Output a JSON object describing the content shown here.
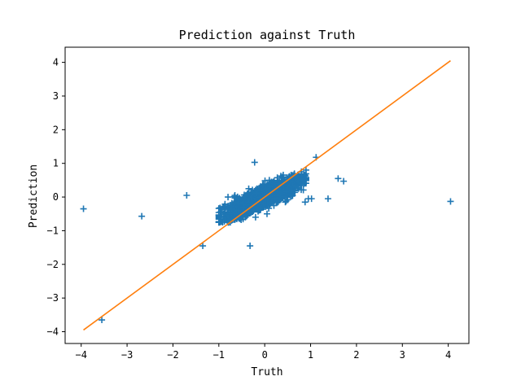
{
  "chart_data": {
    "type": "scatter",
    "title": "Prediction against Truth",
    "xlabel": "Truth",
    "ylabel": "Prediction",
    "xlim": [
      -4.35,
      4.45
    ],
    "ylim": [
      -4.35,
      4.45
    ],
    "xticks": [
      -4,
      -3,
      -2,
      -1,
      0,
      1,
      2,
      3,
      4
    ],
    "yticks": [
      -4,
      -3,
      -2,
      -1,
      0,
      1,
      2,
      3,
      4
    ],
    "tick_labels_x": [
      "−4",
      "−3",
      "−2",
      "−1",
      "0",
      "1",
      "2",
      "3",
      "4"
    ],
    "tick_labels_y": [
      "−4",
      "−3",
      "−2",
      "−1",
      "0",
      "1",
      "2",
      "3",
      "4"
    ],
    "grid": false,
    "colors": {
      "points": "#1f77b4",
      "line": "#ff7f0e"
    },
    "marker": "+",
    "series": [
      {
        "type": "scatter",
        "points": [
          [
            -3.95,
            -0.35
          ],
          [
            -3.55,
            -3.65
          ],
          [
            -2.68,
            -0.57
          ],
          [
            -1.7,
            0.05
          ],
          [
            -1.35,
            -1.45
          ],
          [
            -0.32,
            -1.45
          ],
          [
            -0.22,
            1.03
          ],
          [
            4.05,
            -0.13
          ],
          [
            1.12,
            1.18
          ],
          [
            1.6,
            0.55
          ],
          [
            1.72,
            0.47
          ],
          [
            1.38,
            -0.05
          ],
          [
            1.02,
            -0.05
          ],
          [
            0.95,
            -0.05
          ],
          [
            0.88,
            -0.15
          ],
          [
            -1.0,
            -0.73
          ],
          [
            -0.85,
            -0.68
          ],
          [
            -0.95,
            -0.45
          ],
          [
            -0.65,
            0.05
          ],
          [
            -0.3,
            0.0
          ],
          [
            -0.45,
            -0.3
          ],
          [
            -0.55,
            -0.2
          ],
          [
            0.1,
            0.5
          ],
          [
            0.3,
            0.4
          ],
          [
            0.5,
            0.5
          ],
          [
            0.7,
            0.6
          ],
          [
            0.8,
            0.75
          ],
          [
            -0.8,
            0.0
          ],
          [
            -0.2,
            -0.6
          ],
          [
            0.05,
            -0.5
          ],
          [
            0.6,
            0.2
          ],
          [
            0.45,
            -0.15
          ]
        ],
        "cluster": {
          "center": [
            -0.05,
            -0.02
          ],
          "count": 1500,
          "spread_x": 0.42,
          "slope": 0.62,
          "spread_y": 0.16
        }
      },
      {
        "type": "line",
        "points": [
          [
            -3.95,
            -3.95
          ],
          [
            4.05,
            4.05
          ]
        ]
      }
    ]
  }
}
